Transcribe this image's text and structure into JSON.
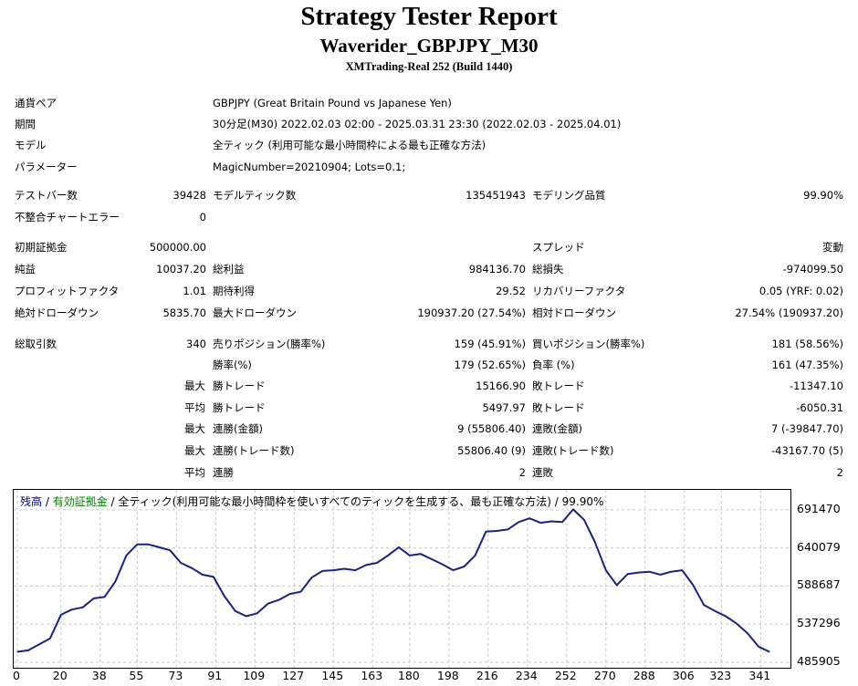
{
  "header": {
    "title": "Strategy Tester Report",
    "subtitle": "Waverider_GBPJPY_M30",
    "server": "XMTrading-Real 252 (Build 1440)"
  },
  "info": [
    {
      "label": "通貨ペア",
      "value": "GBPJPY (Great Britain Pound vs Japanese Yen)"
    },
    {
      "label": "期間",
      "value": "30分足(M30) 2022.02.03 02:00 - 2025.03.31 23:30 (2022.02.03 - 2025.04.01)"
    },
    {
      "label": "モデル",
      "value": "全ティック (利用可能な最小時間枠による最も正確な方法)"
    },
    {
      "label": "パラメーター",
      "value": "MagicNumber=20210904; Lots=0.1;"
    }
  ],
  "stats": {
    "bars_label": "テストバー数",
    "bars": "39428",
    "ticks_label": "モデルティック数",
    "ticks": "135451943",
    "quality_label": "モデリング品質",
    "quality": "99.90%",
    "mismatch_label": "不整合チャートエラー",
    "mismatch": "0",
    "deposit_label": "初期証拠金",
    "deposit": "500000.00",
    "spread_label": "スプレッド",
    "spread": "変動",
    "net_label": "純益",
    "net": "10037.20",
    "gross_profit_label": "総利益",
    "gross_profit": "984136.70",
    "gross_loss_label": "総損失",
    "gross_loss": "-974099.50",
    "pf_label": "プロフィットファクタ",
    "pf": "1.01",
    "expected_label": "期待利得",
    "expected": "29.52",
    "recovery_label": "リカバリーファクタ",
    "recovery": "0.05 (YRF: 0.02)",
    "abs_dd_label": "絶対ドローダウン",
    "abs_dd": "5835.70",
    "max_dd_label": "最大ドローダウン",
    "max_dd": "190937.20 (27.54%)",
    "rel_dd_label": "相対ドローダウン",
    "rel_dd": "27.54% (190937.20)",
    "total_label": "総取引数",
    "total": "340",
    "short_label": "売りポジション(勝率%)",
    "short": "159 (45.91%)",
    "long_label": "買いポジション(勝率%)",
    "long": "181 (58.56%)",
    "win_pct_label": "勝率(%)",
    "win_pct": "179 (52.65%)",
    "loss_pct_label": "負率 (%)",
    "loss_pct": "161 (47.35%)",
    "max_a": "最大",
    "largest_win_label": "勝トレード",
    "largest_win": "15166.90",
    "largest_loss_label": "敗トレード",
    "largest_loss": "-11347.10",
    "avg_a": "平均",
    "avg_win_label": "勝トレード",
    "avg_win": "5497.97",
    "avg_loss_label": "敗トレード",
    "avg_loss": "-6050.31",
    "max_b": "最大",
    "cons_wins_label": "連勝(金額)",
    "cons_wins": "9 (55806.40)",
    "cons_losses_label": "連敗(金額)",
    "cons_losses": "7 (-39847.70)",
    "max_c": "最大",
    "cons_profit_label": "連勝(トレード数)",
    "cons_profit": "55806.40 (9)",
    "cons_loss_label": "連敗(トレード数)",
    "cons_loss": "-43167.70 (5)",
    "avg_b": "平均",
    "avg_cons_win_label": "連勝",
    "avg_cons_win": "2",
    "avg_cons_loss_label": "連敗",
    "avg_cons_loss": "2"
  },
  "chart_data": {
    "type": "line",
    "legend": {
      "balance": "残高",
      "sep1": " / ",
      "equity": "有効証拠金",
      "rest": " / 全ティック(利用可能な最小時間枠を使いすべてのティックを生成する、最も正確な方法) / 99.90%"
    },
    "colors": {
      "line": "#1a237e",
      "balance_label": "#000080",
      "equity_label": "#008000",
      "grid": "#c8c8c8"
    },
    "y_ticks": [
      "691470",
      "640079",
      "588687",
      "537296",
      "485905"
    ],
    "x_ticks": [
      "0",
      "20",
      "38",
      "55",
      "73",
      "91",
      "109",
      "127",
      "145",
      "163",
      "180",
      "198",
      "216",
      "234",
      "252",
      "270",
      "288",
      "306",
      "323",
      "341"
    ],
    "ylim": [
      485905,
      711000
    ],
    "xlim": [
      0,
      353
    ],
    "grid": true,
    "series": [
      {
        "x": [
          0,
          5,
          10,
          15,
          20,
          25,
          30,
          35,
          40,
          45,
          50,
          55,
          60,
          65,
          70,
          75,
          80,
          85,
          90,
          95,
          100,
          105,
          110,
          115,
          120,
          125,
          130,
          135,
          140,
          145,
          150,
          155,
          160,
          165,
          170,
          175,
          180,
          185,
          190,
          195,
          200,
          205,
          210,
          215,
          220,
          225,
          230,
          235,
          240,
          245,
          250,
          255,
          260,
          265,
          270,
          275,
          280,
          285,
          290,
          295,
          300,
          305,
          310,
          315,
          320,
          325,
          330,
          335,
          340,
          345
        ],
        "values": [
          500000,
          502000,
          510000,
          518000,
          550000,
          557000,
          560000,
          572000,
          574000,
          595000,
          630000,
          645000,
          645000,
          641000,
          637000,
          620000,
          613000,
          604000,
          601000,
          575000,
          555000,
          548000,
          552000,
          565000,
          570000,
          578000,
          581000,
          600000,
          609000,
          610000,
          612000,
          610000,
          617000,
          620000,
          630000,
          641000,
          630000,
          632000,
          625000,
          618000,
          610000,
          615000,
          630000,
          662000,
          663000,
          665000,
          675000,
          680000,
          674000,
          676000,
          675000,
          692000,
          678000,
          648000,
          610000,
          590000,
          605000,
          607000,
          608000,
          604000,
          608000,
          610000,
          590000,
          563000,
          555000,
          548000,
          538000,
          525000,
          507000,
          500000
        ]
      }
    ]
  }
}
